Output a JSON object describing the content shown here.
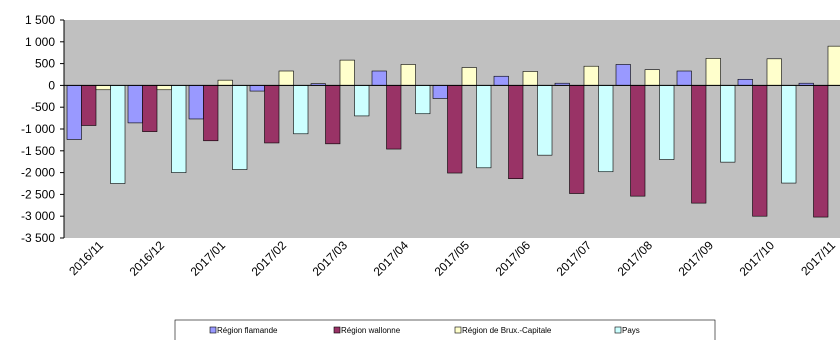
{
  "chart_data": {
    "type": "bar",
    "categories": [
      "2016/11",
      "2016/12",
      "2017/01",
      "2017/02",
      "2017/03",
      "2017/04",
      "2017/05",
      "2017/06",
      "2017/07",
      "2017/08",
      "2017/09",
      "2017/10",
      "2017/11"
    ],
    "series": [
      {
        "name": "Région flamande",
        "color": "#9999ff",
        "values": [
          -1240,
          -860,
          -770,
          -130,
          40,
          330,
          -300,
          210,
          50,
          480,
          330,
          140,
          50
        ]
      },
      {
        "name": "Région wallonne",
        "color": "#993366",
        "values": [
          -920,
          -1060,
          -1270,
          -1320,
          -1340,
          -1460,
          -2010,
          -2140,
          -2480,
          -2540,
          -2700,
          -3000,
          -3020
        ]
      },
      {
        "name": "Région de Brux.-Capitale",
        "color": "#ffffcc",
        "values": [
          -100,
          -100,
          120,
          330,
          580,
          480,
          410,
          320,
          440,
          360,
          620,
          610,
          900
        ]
      },
      {
        "name": "Pays",
        "color": "#ccffff",
        "values": [
          -2250,
          -2000,
          -1930,
          -1110,
          -700,
          -650,
          -1890,
          -1600,
          -1980,
          -1700,
          -1760,
          -2240,
          null
        ]
      }
    ],
    "yticks": [
      "1 500",
      "1 000",
      "500",
      "0",
      "-500",
      "-1 000",
      "-1 500",
      "-2 000",
      "-2 500",
      "-3 000",
      "-3 500"
    ],
    "ylim": [
      -3500,
      1500
    ],
    "plot_background": "#c0c0c0",
    "grid": false,
    "legend_position": "bottom"
  }
}
